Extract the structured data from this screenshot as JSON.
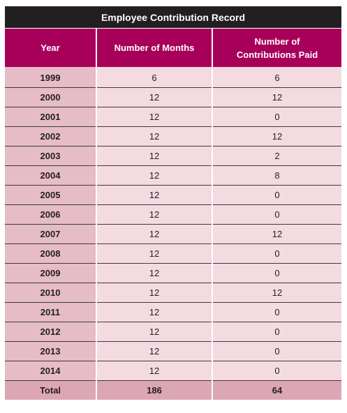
{
  "table": {
    "title": "Employee Contribution Record",
    "headers": [
      "Year",
      "Number of Months",
      "Number of\nContributions Paid"
    ],
    "rows": [
      {
        "year": "1999",
        "months": "6",
        "paid": "6"
      },
      {
        "year": "2000",
        "months": "12",
        "paid": "12"
      },
      {
        "year": "2001",
        "months": "12",
        "paid": "0"
      },
      {
        "year": "2002",
        "months": "12",
        "paid": "12"
      },
      {
        "year": "2003",
        "months": "12",
        "paid": "2"
      },
      {
        "year": "2004",
        "months": "12",
        "paid": "8"
      },
      {
        "year": "2005",
        "months": "12",
        "paid": "0"
      },
      {
        "year": "2006",
        "months": "12",
        "paid": "0"
      },
      {
        "year": "2007",
        "months": "12",
        "paid": "12"
      },
      {
        "year": "2008",
        "months": "12",
        "paid": "0"
      },
      {
        "year": "2009",
        "months": "12",
        "paid": "0"
      },
      {
        "year": "2010",
        "months": "12",
        "paid": "12"
      },
      {
        "year": "2011",
        "months": "12",
        "paid": "0"
      },
      {
        "year": "2012",
        "months": "12",
        "paid": "0"
      },
      {
        "year": "2013",
        "months": "12",
        "paid": "0"
      },
      {
        "year": "2014",
        "months": "12",
        "paid": "0"
      }
    ],
    "total": {
      "label": "Total",
      "months": "186",
      "paid": "64"
    }
  },
  "colors": {
    "title_background": "#231f20",
    "header_background": "#a8005a",
    "year_column": "#e6bcc6",
    "body_cells": "#f4dbe1",
    "total_row": "#dca6b4"
  }
}
